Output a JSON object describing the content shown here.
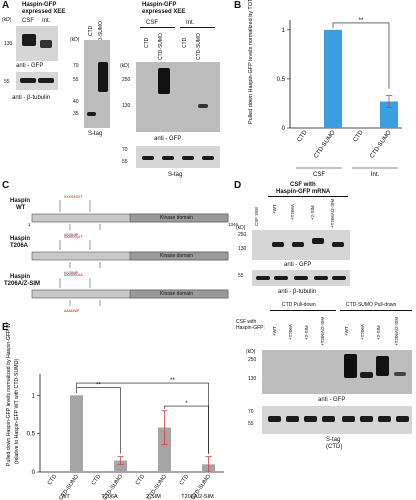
{
  "panels": {
    "a": "A",
    "b": "B",
    "c": "C",
    "d": "D",
    "e": "E"
  },
  "panelA": {
    "title1": "Haspin-GFP",
    "title2": "expressed XEE",
    "lane_csf": "CSF",
    "lane_int": "Int.",
    "kd": "(kD)",
    "kd_blot1": "130",
    "kd_blot2": "55",
    "anti_gfp": "anti - GFP",
    "anti_tub": "anti - β-tubulin",
    "stag_lane1": "CTD",
    "stag_lane2": "CTD-SUMO",
    "stag_kd": [
      "(kD)",
      "70",
      "55",
      "40",
      "35"
    ],
    "stag_label": "S-tag",
    "right_title1": "Haspin-GFP",
    "right_title2": "expressed XEE",
    "right_csf": "CSF",
    "right_int": "Int.",
    "right_lanes": [
      "CTD",
      "CTD-SUMO",
      "CTD",
      "CTD-SUMO"
    ],
    "right_kd": [
      "(kD)",
      "250",
      "130"
    ],
    "right_anti": "anti - GFP",
    "right_kd2": [
      "70",
      "55"
    ],
    "right_stag": "S-tag"
  },
  "chart_b": {
    "type": "bar",
    "ylabel": "Pulled down Haspin-GFP levels normalized by TOTAL CTD (relative to CTD-SUMO in CSF)",
    "categories": [
      "CTD",
      "CTD-SUMO",
      "CTD",
      "CTD-SUMO"
    ],
    "groups": [
      "CSF",
      "Int."
    ],
    "values": [
      0.0,
      1.0,
      0.0,
      0.27
    ],
    "errors": [
      0,
      0,
      0,
      0.06
    ],
    "ylim": [
      0,
      1.1
    ],
    "yticks": [
      "0",
      "0.5",
      "1"
    ],
    "significance": "**",
    "bar_color": "#3a9ee0"
  },
  "panelC": {
    "constructs": [
      {
        "name": "Haspin",
        "sub": "WT",
        "domain": "Kinase domain"
      },
      {
        "name": "Haspin",
        "sub": "T206A",
        "domain": "Kinase domain"
      },
      {
        "name": "Haspin",
        "sub": "T206A/Z-SIM",
        "domain": "Kinase domain"
      }
    ],
    "start": "1",
    "end": "1346"
  },
  "panelD": {
    "title1": "CSF with",
    "title2": "Haspin-GFP mRNA",
    "lanes": [
      "CSF XEE",
      "+WT",
      "+T206A",
      "+2-SIM",
      "+T206A/2-SIM"
    ],
    "kd": [
      "(kD)",
      "250",
      "130",
      "55"
    ],
    "anti_gfp": "anti - GFP",
    "anti_tub": "anti - β-tubulin"
  },
  "panelD2": {
    "group1": "CTD Pull-down",
    "group2": "CTD-SUMO Pull-down",
    "row_label1": "CSF with",
    "row_label2": "Haspin-GFP:",
    "lanes": [
      "+WT",
      "+T206A",
      "+2-SIM",
      "+T206A/2-SIM",
      "+WT",
      "+T206A",
      "+2-SIM",
      "+T206A/2-SIM"
    ],
    "kd": [
      "(kD)",
      "250",
      "130",
      "70",
      "55"
    ],
    "anti_gfp": "anti - GFP",
    "stag": "S-tag",
    "stag_sub": "(CTD)"
  },
  "chart_e": {
    "type": "bar",
    "ylabel": "Pulled down Haspin-GFP levels normalized by Haspin-GFP WT with CTD-SUMO",
    "ylabel2": "(relative to Haspin-GFP WT with CTD-SUMO)",
    "categories": [
      "CTD",
      "CTD-SUMO",
      "CTD",
      "CTD-SUMO",
      "CTD",
      "CTD-SUMO",
      "CTD",
      "CTD-SUMO"
    ],
    "groups": [
      "WT",
      "T206A",
      "2-SIM",
      "T206A/2-SIM"
    ],
    "values": [
      0.0,
      1.0,
      0.0,
      0.15,
      0.0,
      0.58,
      0.0,
      0.1
    ],
    "errors": [
      0,
      0,
      0,
      0.05,
      0,
      0.22,
      0,
      0.1
    ],
    "ylim": [
      0,
      1.2
    ],
    "yticks": [
      "0",
      "0.5",
      "1"
    ],
    "significance": [
      "**",
      "**",
      "*"
    ],
    "bar_color": "#a5a5a5",
    "err_color": "#e03a3a"
  }
}
